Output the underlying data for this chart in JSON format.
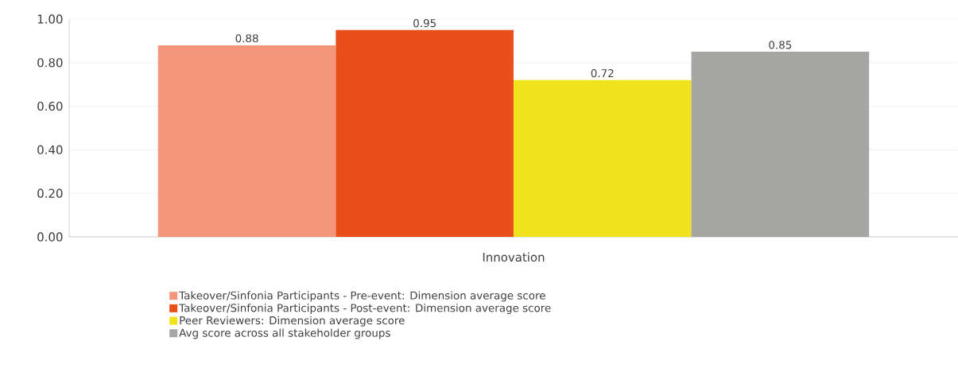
{
  "chart_data": {
    "type": "bar",
    "categories": [
      "Innovation"
    ],
    "series": [
      {
        "name": "Takeover/Sinfonia Participants - Pre-event: Dimension average score",
        "color": "#f4967a",
        "values": [
          0.88
        ]
      },
      {
        "name": "Takeover/Sinfonia Participants - Post-event: Dimension average score",
        "color": "#e94e1b",
        "values": [
          0.95
        ]
      },
      {
        "name": "Peer Reviewers: Dimension average score",
        "color": "#f0e21b",
        "values": [
          0.72
        ]
      },
      {
        "name": "Avg score across all stakeholder groups",
        "color": "#a6a6a5",
        "values": [
          0.85
        ]
      }
    ],
    "ylim": [
      0,
      1
    ],
    "yticks": [
      {
        "value": 0,
        "label": "0.00"
      },
      {
        "value": 0.2,
        "label": "0.20"
      },
      {
        "value": 0.4,
        "label": "0.40"
      },
      {
        "value": 0.6,
        "label": "0.60"
      },
      {
        "value": 0.8,
        "label": "0.80"
      },
      {
        "value": 1,
        "label": "1.00"
      }
    ],
    "grid": "y",
    "legend": "bottom",
    "data_labels": true
  }
}
